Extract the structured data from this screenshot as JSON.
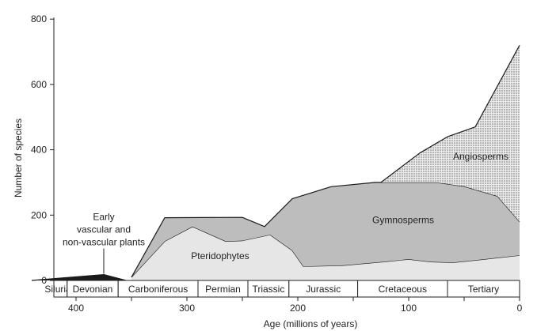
{
  "chart_data": {
    "type": "area",
    "xlabel": "Age (millions of years)",
    "ylabel": "Number of species",
    "x_reversed": true,
    "xlim": [
      440,
      0
    ],
    "ylim": [
      0,
      800
    ],
    "x_ticks": [
      400,
      300,
      200,
      100,
      0
    ],
    "y_ticks": [
      0,
      200,
      400,
      600,
      800
    ],
    "grid": false,
    "series": [
      {
        "name": "Early vascular and non-vascular plants",
        "fill": "#1a1a1a",
        "lower": [
          [
            440,
            0
          ],
          [
            355,
            0
          ]
        ],
        "upper": [
          [
            440,
            0
          ],
          [
            375,
            18
          ],
          [
            355,
            0
          ]
        ]
      },
      {
        "name": "Pteridophytes",
        "fill": "#e6e6e6",
        "lower": [
          [
            350,
            0
          ],
          [
            0,
            0
          ]
        ],
        "upper": [
          [
            350,
            10
          ],
          [
            320,
            120
          ],
          [
            295,
            165
          ],
          [
            265,
            120
          ],
          [
            250,
            122
          ],
          [
            225,
            140
          ],
          [
            205,
            92
          ],
          [
            195,
            43
          ],
          [
            160,
            46
          ],
          [
            120,
            58
          ],
          [
            100,
            65
          ],
          [
            80,
            57
          ],
          [
            60,
            55
          ],
          [
            40,
            62
          ],
          [
            0,
            77
          ]
        ]
      },
      {
        "name": "Gymnosperms",
        "fill": "#bdbdbd",
        "lower": [
          [
            350,
            10
          ],
          [
            320,
            120
          ],
          [
            295,
            165
          ],
          [
            265,
            120
          ],
          [
            250,
            122
          ],
          [
            225,
            140
          ],
          [
            205,
            92
          ],
          [
            195,
            43
          ],
          [
            160,
            46
          ],
          [
            120,
            58
          ],
          [
            100,
            65
          ],
          [
            80,
            57
          ],
          [
            60,
            55
          ],
          [
            40,
            62
          ],
          [
            0,
            77
          ]
        ],
        "upper": [
          [
            350,
            10
          ],
          [
            320,
            192
          ],
          [
            250,
            193
          ],
          [
            230,
            165
          ],
          [
            205,
            250
          ],
          [
            170,
            287
          ],
          [
            130,
            300
          ],
          [
            75,
            300
          ],
          [
            50,
            288
          ],
          [
            20,
            258
          ],
          [
            0,
            180
          ]
        ]
      },
      {
        "name": "Angiosperms",
        "fill": "#e8e8e8",
        "pattern": "dots",
        "lower": [
          [
            125,
            300
          ],
          [
            75,
            300
          ],
          [
            50,
            288
          ],
          [
            20,
            258
          ],
          [
            0,
            180
          ]
        ],
        "upper": [
          [
            125,
            300
          ],
          [
            90,
            390
          ],
          [
            65,
            440
          ],
          [
            40,
            470
          ],
          [
            0,
            720
          ]
        ]
      }
    ],
    "labels": [
      {
        "text": [
          "Early",
          "vascular and",
          "non-vascular plants"
        ],
        "x": 375,
        "y": 185,
        "leader_to": [
          375,
          18
        ]
      },
      {
        "text": [
          "Pteridophytes"
        ],
        "x": 270,
        "y": 65
      },
      {
        "text": [
          "Gymnosperms"
        ],
        "x": 105,
        "y": 175
      },
      {
        "text": [
          "Angiosperms"
        ],
        "x": 35,
        "y": 370
      }
    ],
    "periods": [
      {
        "name": "Silurian",
        "start": 440,
        "end": 408
      },
      {
        "name": "Devonian",
        "start": 408,
        "end": 362
      },
      {
        "name": "Carboniferous",
        "start": 362,
        "end": 290
      },
      {
        "name": "Permian",
        "start": 290,
        "end": 245
      },
      {
        "name": "Triassic",
        "start": 245,
        "end": 208
      },
      {
        "name": "Jurassic",
        "start": 208,
        "end": 146
      },
      {
        "name": "Cretaceous",
        "start": 146,
        "end": 65
      },
      {
        "name": "Tertiary",
        "start": 65,
        "end": 0
      }
    ]
  }
}
